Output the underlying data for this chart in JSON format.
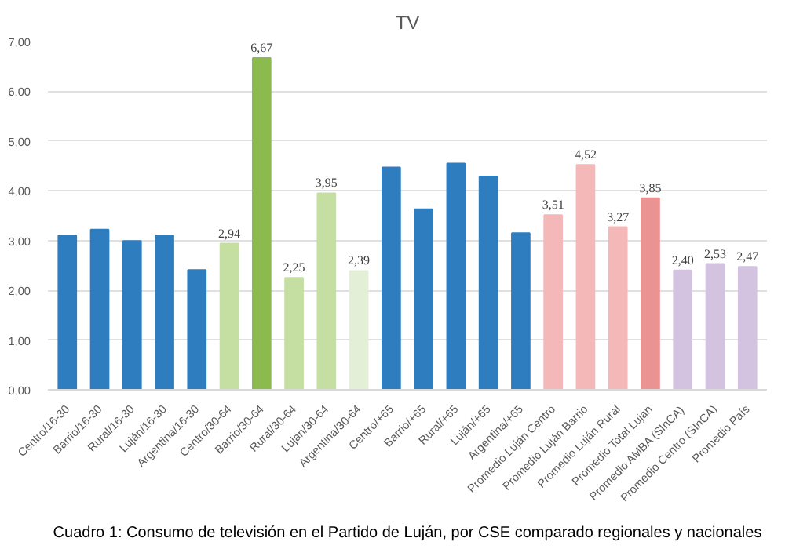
{
  "chart_data": {
    "type": "bar",
    "title": "TV",
    "categories": [
      "Centro/16-30",
      "Barrio/16-30",
      "Rural/16-30",
      "Luján/16-30",
      "Argentina/16-30",
      "Centro/30-64",
      "Barrio/30-64",
      "Rural/30-64",
      "Luján/30-64",
      "Argentina/30-64",
      "Centro/+65",
      "Barrio/+65",
      "Rural/+65",
      "Luján/+65",
      "Argentina/+65",
      "Promedio Luján Centro",
      "Promedio Luján Barrio",
      "Promedio Luján Rural",
      "Promedio Total Luján",
      "Promedio AMBA (SInCA)",
      "Promedio Centro (SInCA)",
      "Promedio País"
    ],
    "values": [
      3.1,
      3.22,
      2.99,
      3.1,
      2.41,
      2.94,
      6.67,
      2.25,
      3.95,
      2.39,
      4.47,
      3.63,
      4.55,
      4.29,
      3.15,
      3.51,
      4.52,
      3.27,
      3.85,
      2.4,
      2.53,
      2.47
    ],
    "value_labels": [
      null,
      null,
      null,
      null,
      null,
      "2,94",
      "6,67",
      "2,25",
      "3,95",
      "2,39",
      null,
      null,
      null,
      null,
      null,
      "3,51",
      "4,52",
      "3,27",
      "3,85",
      "2,40",
      "2,53",
      "2,47"
    ],
    "colors": [
      "#2e7dbf",
      "#2e7dbf",
      "#2e7dbf",
      "#2e7dbf",
      "#2e7dbf",
      "#c5dea2",
      "#8bbb4e",
      "#c5dea2",
      "#c5dea2",
      "#e3efd7",
      "#2e7dbf",
      "#2e7dbf",
      "#2e7dbf",
      "#2e7dbf",
      "#2e7dbf",
      "#f4b8b8",
      "#f4b8b8",
      "#f4b8b8",
      "#eb9393",
      "#d3c3e0",
      "#d3c3e0",
      "#d3c3e0"
    ],
    "ylim": [
      0,
      7
    ],
    "yticks": [
      {
        "value": 0,
        "label": "0,00"
      },
      {
        "value": 1,
        "label": "1,00"
      },
      {
        "value": 2,
        "label": "2,00"
      },
      {
        "value": 3,
        "label": "3,00"
      },
      {
        "value": 4,
        "label": "4,00"
      },
      {
        "value": 5,
        "label": "5,00"
      },
      {
        "value": 6,
        "label": "6,00"
      },
      {
        "value": 7,
        "label": "7,00"
      }
    ],
    "grid": "y",
    "annotations": [
      "Cuadro 1: Consumo de televisión en el Partido de Luján, por CSE comparado regionales y nacionales"
    ]
  }
}
